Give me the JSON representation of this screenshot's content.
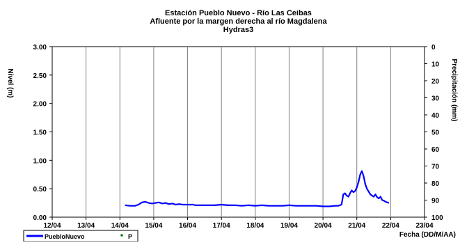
{
  "chart_data": {
    "type": "line",
    "title": [
      "Estación Pueblo Nuevo - Río Las Ceibas",
      "Afluente por la margen derecha al río Magdalena",
      "Hydras3"
    ],
    "xlabel": "Fecha (DD/M/AA)",
    "ylabel_left": "Nivel (m)",
    "ylabel_right": "Precipitación (mm)",
    "x_ticks": [
      "12/04",
      "13/04",
      "14/04",
      "15/04",
      "16/04",
      "17/04",
      "18/04",
      "19/04",
      "20/04",
      "21/04",
      "22/04",
      "23/04"
    ],
    "x_range": [
      12,
      23
    ],
    "y_ticks_left": [
      "0.00",
      "0.50",
      "1.00",
      "1.50",
      "2.00",
      "2.50",
      "3.00"
    ],
    "ylim_left": [
      0,
      3
    ],
    "y_ticks_right": [
      "0",
      "10",
      "20",
      "30",
      "40",
      "50",
      "60",
      "70",
      "80",
      "90",
      "100"
    ],
    "ylim_right": [
      0,
      100
    ],
    "right_axis_inverted": true,
    "grid": "vertical",
    "legend_position": "bottom-left",
    "series": [
      {
        "name": "PuebloNuevo",
        "color": "#0000ff",
        "x": [
          14.15,
          14.3,
          14.45,
          14.55,
          14.65,
          14.75,
          14.85,
          14.95,
          15.05,
          15.15,
          15.25,
          15.35,
          15.45,
          15.55,
          15.65,
          15.75,
          15.85,
          16.0,
          16.2,
          16.2,
          16.4,
          16.6,
          16.8,
          17.0,
          17.2,
          17.4,
          17.6,
          17.8,
          18.0,
          18.2,
          18.4,
          18.6,
          18.8,
          19.0,
          19.2,
          19.4,
          19.6,
          19.8,
          20.0,
          20.2,
          20.35,
          20.45,
          20.55,
          20.6,
          20.65,
          20.7,
          20.75,
          20.8,
          20.85,
          20.9,
          20.95,
          21.0,
          21.05,
          21.1,
          21.15,
          21.2,
          21.25,
          21.3,
          21.35,
          21.4,
          21.45,
          21.5,
          21.55,
          21.6,
          21.65,
          21.7,
          21.75,
          21.8,
          21.85,
          21.9,
          21.95
        ],
        "y": [
          0.21,
          0.2,
          0.2,
          0.22,
          0.26,
          0.27,
          0.25,
          0.24,
          0.25,
          0.26,
          0.24,
          0.25,
          0.23,
          0.24,
          0.22,
          0.23,
          0.22,
          0.22,
          0.22,
          0.21,
          0.21,
          0.21,
          0.21,
          0.22,
          0.21,
          0.21,
          0.2,
          0.21,
          0.2,
          0.21,
          0.2,
          0.2,
          0.2,
          0.21,
          0.2,
          0.2,
          0.2,
          0.2,
          0.19,
          0.19,
          0.2,
          0.2,
          0.22,
          0.4,
          0.42,
          0.38,
          0.36,
          0.42,
          0.47,
          0.44,
          0.46,
          0.52,
          0.62,
          0.75,
          0.81,
          0.72,
          0.58,
          0.5,
          0.45,
          0.4,
          0.38,
          0.36,
          0.4,
          0.35,
          0.33,
          0.36,
          0.3,
          0.29,
          0.27,
          0.26,
          0.25
        ]
      },
      {
        "name": "P",
        "color": "#008000",
        "x": [],
        "y": []
      }
    ]
  }
}
